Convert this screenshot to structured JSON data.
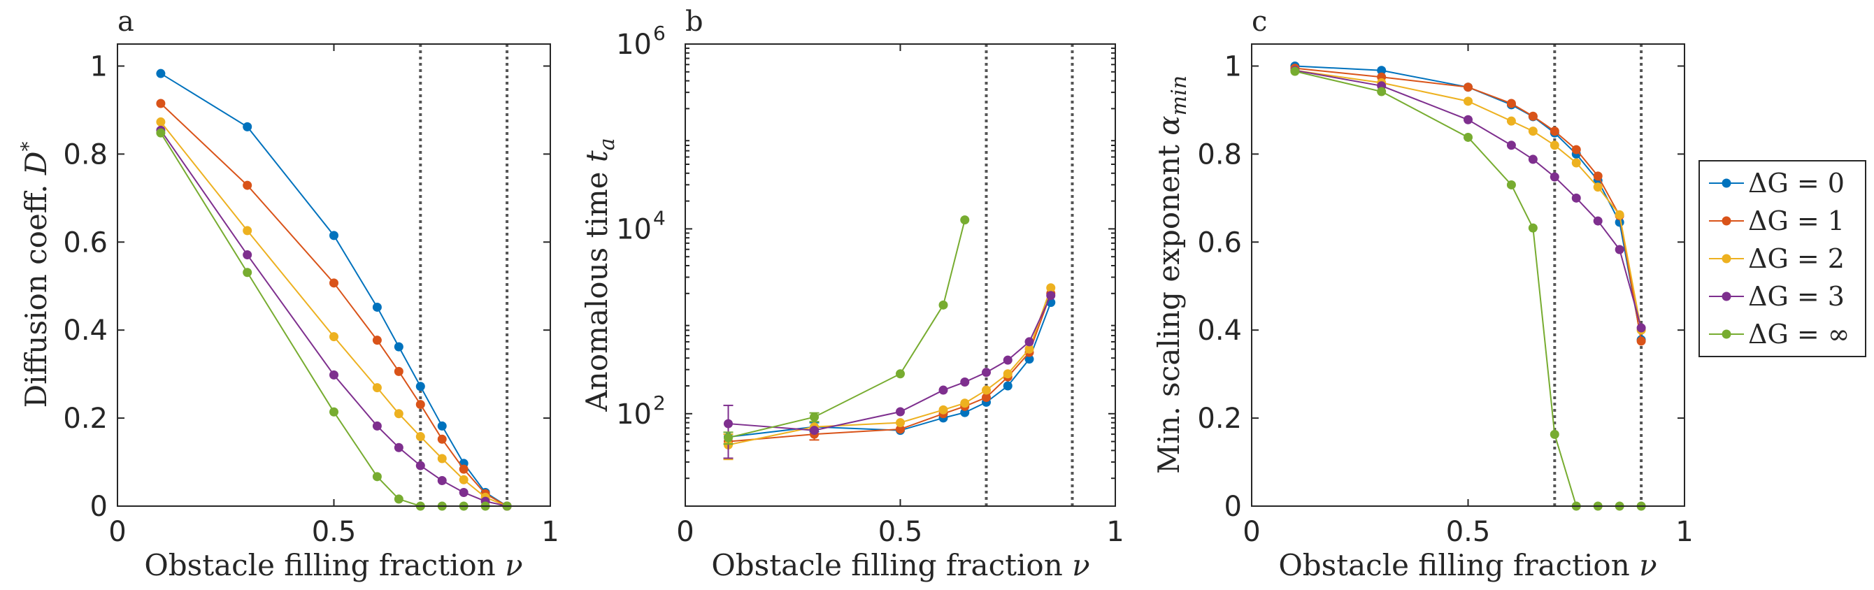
{
  "legend": {
    "placement": "right",
    "entries": [
      {
        "label": "ΔG = 0",
        "color": "#0072BD"
      },
      {
        "label": "ΔG = 1",
        "color": "#D95319"
      },
      {
        "label": "ΔG = 2",
        "color": "#EDB120"
      },
      {
        "label": "ΔG = 3",
        "color": "#7E2F8E"
      },
      {
        "label": "ΔG = ∞",
        "color": "#77AC30"
      }
    ]
  },
  "chart_data": [
    {
      "type": "line",
      "panel_label": "a",
      "xlabel": "Obstacle filling fraction ν",
      "ylabel": "Diffusion coeff. D*",
      "xlim": [
        0,
        1
      ],
      "ylim": [
        0,
        1.05
      ],
      "yscale": "linear",
      "xticks": [
        0,
        0.5,
        1
      ],
      "xtick_labels": [
        "0",
        "0.5",
        "1"
      ],
      "yticks": [
        0,
        0.2,
        0.4,
        0.6,
        0.8,
        1
      ],
      "ytick_labels": [
        "0",
        "0.2",
        "0.4",
        "0.6",
        "0.8",
        "1"
      ],
      "vlines": [
        0.7,
        0.9
      ],
      "grid": false,
      "series": [
        {
          "name": "ΔG = 0",
          "color": "#0072BD",
          "x": [
            0.1,
            0.3,
            0.5,
            0.6,
            0.65,
            0.7,
            0.75,
            0.8,
            0.85,
            0.9
          ],
          "y": [
            0.983,
            0.862,
            0.615,
            0.452,
            0.362,
            0.272,
            0.182,
            0.097,
            0.031,
            0.0
          ]
        },
        {
          "name": "ΔG = 1",
          "color": "#D95319",
          "x": [
            0.1,
            0.3,
            0.5,
            0.6,
            0.65,
            0.7,
            0.75,
            0.8,
            0.85,
            0.9
          ],
          "y": [
            0.915,
            0.729,
            0.507,
            0.377,
            0.306,
            0.231,
            0.152,
            0.084,
            0.028,
            0.0
          ]
        },
        {
          "name": "ΔG = 2",
          "color": "#EDB120",
          "x": [
            0.1,
            0.3,
            0.5,
            0.6,
            0.65,
            0.7,
            0.75,
            0.8,
            0.85,
            0.9
          ],
          "y": [
            0.873,
            0.626,
            0.385,
            0.269,
            0.21,
            0.158,
            0.108,
            0.06,
            0.02,
            0.0
          ]
        },
        {
          "name": "ΔG = 3",
          "color": "#7E2F8E",
          "x": [
            0.1,
            0.3,
            0.5,
            0.6,
            0.65,
            0.7,
            0.75,
            0.8,
            0.85,
            0.9
          ],
          "y": [
            0.854,
            0.571,
            0.298,
            0.182,
            0.133,
            0.092,
            0.058,
            0.031,
            0.011,
            0.0
          ]
        },
        {
          "name": "ΔG = ∞",
          "color": "#77AC30",
          "x": [
            0.1,
            0.3,
            0.5,
            0.6,
            0.65,
            0.7,
            0.75,
            0.8,
            0.85,
            0.9
          ],
          "y": [
            0.848,
            0.531,
            0.214,
            0.067,
            0.016,
            0.0,
            0.0,
            0.0,
            0.0,
            0.0
          ]
        }
      ]
    },
    {
      "type": "line",
      "panel_label": "b",
      "xlabel": "Obstacle filling fraction ν",
      "ylabel": "Anomalous time t_a",
      "xlim": [
        0,
        1
      ],
      "ylim": [
        10,
        1000000
      ],
      "yscale": "log",
      "xticks": [
        0,
        0.5,
        1
      ],
      "xtick_labels": [
        "0",
        "0.5",
        "1"
      ],
      "yticks": [
        100,
        10000,
        1000000
      ],
      "ytick_labels": [
        "10",
        "10",
        "10"
      ],
      "ytick_exponents": [
        "2",
        "4",
        "6"
      ],
      "vlines": [
        0.7,
        0.9
      ],
      "grid": false,
      "series": [
        {
          "name": "ΔG = 0",
          "color": "#0072BD",
          "x": [
            0.1,
            0.3,
            0.5,
            0.6,
            0.65,
            0.7,
            0.75,
            0.8,
            0.85
          ],
          "y": [
            56,
            72,
            66,
            90,
            103,
            133,
            200,
            390,
            1600
          ],
          "err": [
            null,
            8,
            null,
            null,
            null,
            null,
            null,
            null,
            null
          ]
        },
        {
          "name": "ΔG = 1",
          "color": "#D95319",
          "x": [
            0.1,
            0.3,
            0.5,
            0.6,
            0.65,
            0.7,
            0.75,
            0.8,
            0.85
          ],
          "y": [
            50,
            60,
            68,
            100,
            120,
            150,
            250,
            460,
            2000
          ],
          "err": [
            null,
            8,
            null,
            null,
            null,
            null,
            null,
            null,
            null
          ]
        },
        {
          "name": "ΔG = 2",
          "color": "#EDB120",
          "x": [
            0.1,
            0.3,
            0.5,
            0.6,
            0.65,
            0.7,
            0.75,
            0.8,
            0.85
          ],
          "y": [
            46,
            72,
            80,
            110,
            130,
            180,
            270,
            500,
            2300
          ],
          "err": [
            14,
            null,
            null,
            null,
            null,
            null,
            null,
            null,
            null
          ]
        },
        {
          "name": "ΔG = 3",
          "color": "#7E2F8E",
          "x": [
            0.1,
            0.3,
            0.5,
            0.6,
            0.65,
            0.7,
            0.75,
            0.8,
            0.85
          ],
          "y": [
            78,
            66,
            105,
            180,
            220,
            280,
            380,
            600,
            1900
          ],
          "err": [
            45,
            null,
            null,
            null,
            null,
            null,
            null,
            null,
            null
          ]
        },
        {
          "name": "ΔG = ∞",
          "color": "#77AC30",
          "x": [
            0.1,
            0.3,
            0.5,
            0.6,
            0.65
          ],
          "y": [
            55,
            92,
            270,
            1500,
            12500
          ],
          "err": [
            8,
            10,
            null,
            null,
            null
          ]
        }
      ]
    },
    {
      "type": "line",
      "panel_label": "c",
      "xlabel": "Obstacle filling fraction ν",
      "ylabel": "Min. scaling exponent α_min",
      "xlim": [
        0,
        1
      ],
      "ylim": [
        0,
        1.05
      ],
      "yscale": "linear",
      "xticks": [
        0,
        0.5,
        1
      ],
      "xtick_labels": [
        "0",
        "0.5",
        "1"
      ],
      "yticks": [
        0,
        0.2,
        0.4,
        0.6,
        0.8,
        1
      ],
      "ytick_labels": [
        "0",
        "0.2",
        "0.4",
        "0.6",
        "0.8",
        "1"
      ],
      "vlines": [
        0.7,
        0.9
      ],
      "grid": false,
      "series": [
        {
          "name": "ΔG = 0",
          "color": "#0072BD",
          "x": [
            0.1,
            0.3,
            0.5,
            0.6,
            0.65,
            0.7,
            0.75,
            0.8,
            0.85,
            0.9
          ],
          "y": [
            1.0,
            0.99,
            0.952,
            0.912,
            0.885,
            0.848,
            0.8,
            0.74,
            0.645,
            0.378
          ]
        },
        {
          "name": "ΔG = 1",
          "color": "#D95319",
          "x": [
            0.1,
            0.3,
            0.5,
            0.6,
            0.65,
            0.7,
            0.75,
            0.8,
            0.85,
            0.9
          ],
          "y": [
            0.995,
            0.975,
            0.952,
            0.915,
            0.886,
            0.852,
            0.81,
            0.75,
            0.66,
            0.375
          ]
        },
        {
          "name": "ΔG = 2",
          "color": "#EDB120",
          "x": [
            0.1,
            0.3,
            0.5,
            0.6,
            0.65,
            0.7,
            0.75,
            0.8,
            0.85,
            0.9
          ],
          "y": [
            0.99,
            0.962,
            0.92,
            0.875,
            0.852,
            0.82,
            0.78,
            0.725,
            0.662,
            0.4
          ]
        },
        {
          "name": "ΔG = 3",
          "color": "#7E2F8E",
          "x": [
            0.1,
            0.3,
            0.5,
            0.6,
            0.65,
            0.7,
            0.75,
            0.8,
            0.85,
            0.9
          ],
          "y": [
            0.99,
            0.955,
            0.878,
            0.82,
            0.788,
            0.748,
            0.7,
            0.648,
            0.583,
            0.405
          ]
        },
        {
          "name": "ΔG = ∞",
          "color": "#77AC30",
          "x": [
            0.1,
            0.3,
            0.5,
            0.6,
            0.65,
            0.7,
            0.75,
            0.8,
            0.85,
            0.9
          ],
          "y": [
            0.988,
            0.942,
            0.838,
            0.73,
            0.632,
            0.163,
            0.0,
            0.0,
            0.0,
            0.0
          ]
        }
      ]
    }
  ]
}
